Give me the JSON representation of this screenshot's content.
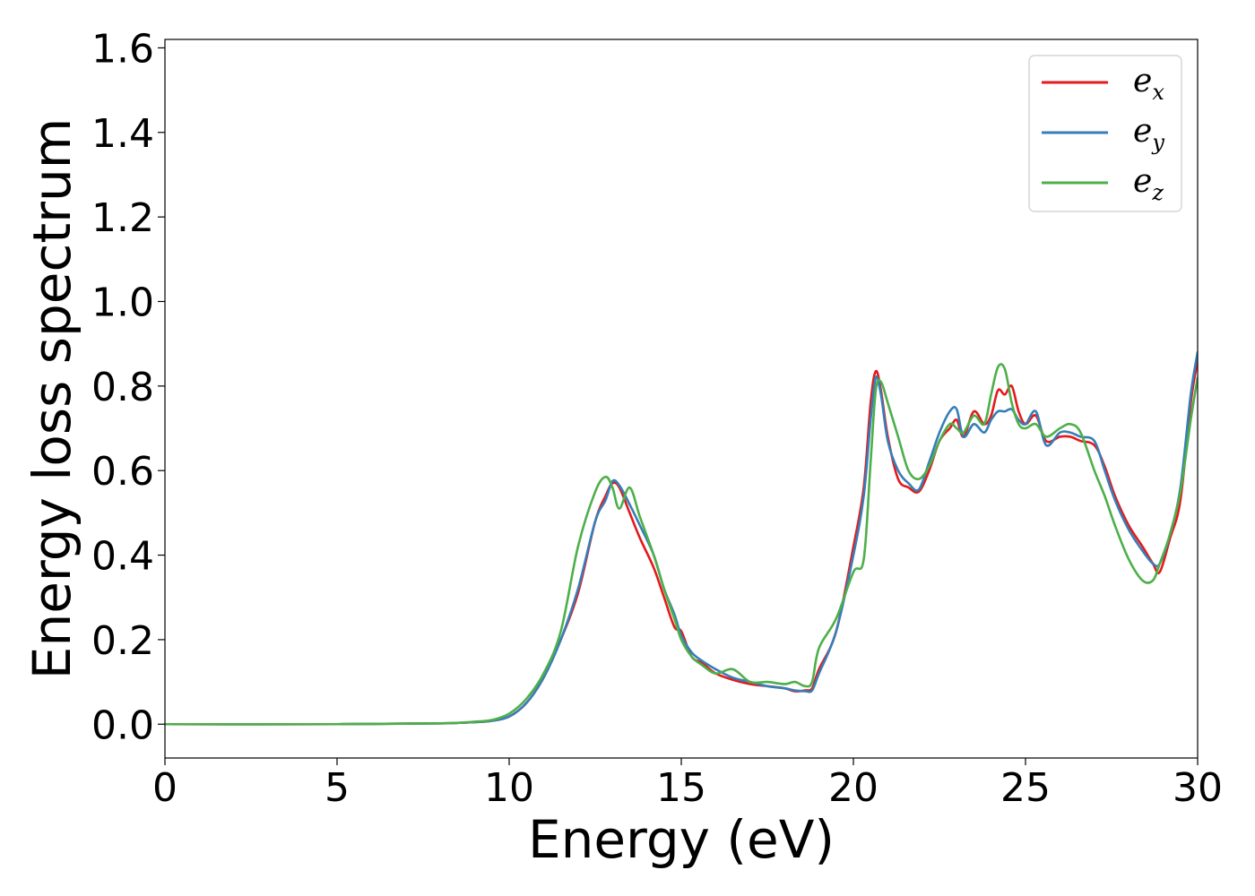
{
  "chart_data": {
    "type": "line",
    "title": "",
    "xlabel": "Energy (eV)",
    "ylabel": "Energy loss spectrum",
    "xlim": [
      0,
      30
    ],
    "ylim": [
      -0.08,
      1.62
    ],
    "xticks": [
      0,
      5,
      10,
      15,
      20,
      25,
      30
    ],
    "xtick_labels": [
      "0",
      "5",
      "10",
      "15",
      "20",
      "25",
      "30"
    ],
    "yticks": [
      0.0,
      0.2,
      0.4,
      0.6,
      0.8,
      1.0,
      1.2,
      1.4,
      1.6
    ],
    "ytick_labels": [
      "0.0",
      "0.2",
      "0.4",
      "0.6",
      "0.8",
      "1.0",
      "1.2",
      "1.4",
      "1.6"
    ],
    "grid": false,
    "legend_position": "top-right",
    "series": [
      {
        "name": "e_x",
        "label_base": "e",
        "label_sub": "x",
        "color": "#e41a1c",
        "x": [
          0,
          5,
          8,
          9,
          9.5,
          10,
          10.5,
          11,
          11.5,
          12,
          12.5,
          12.8,
          13.0,
          13.2,
          13.5,
          13.8,
          14.2,
          14.5,
          14.8,
          15.0,
          15.3,
          15.6,
          16.0,
          16.5,
          17.0,
          17.5,
          18.0,
          18.3,
          18.6,
          18.8,
          19.0,
          19.5,
          20.0,
          20.3,
          20.5,
          20.65,
          20.8,
          21.0,
          21.3,
          21.6,
          21.9,
          22.2,
          22.5,
          22.8,
          23.0,
          23.2,
          23.5,
          23.8,
          24.0,
          24.2,
          24.4,
          24.6,
          24.8,
          25.0,
          25.3,
          25.6,
          26.0,
          26.3,
          26.6,
          27.0,
          27.3,
          27.6,
          28.0,
          28.4,
          28.7,
          28.9,
          29.2,
          29.5,
          29.8,
          30.0
        ],
        "y": [
          0.0,
          0.0,
          0.002,
          0.005,
          0.008,
          0.018,
          0.05,
          0.11,
          0.2,
          0.31,
          0.48,
          0.54,
          0.57,
          0.56,
          0.5,
          0.44,
          0.37,
          0.3,
          0.23,
          0.22,
          0.16,
          0.145,
          0.12,
          0.105,
          0.095,
          0.09,
          0.085,
          0.078,
          0.08,
          0.085,
          0.13,
          0.22,
          0.42,
          0.56,
          0.76,
          0.835,
          0.79,
          0.68,
          0.58,
          0.56,
          0.55,
          0.6,
          0.67,
          0.7,
          0.72,
          0.68,
          0.74,
          0.71,
          0.73,
          0.79,
          0.78,
          0.8,
          0.74,
          0.71,
          0.73,
          0.67,
          0.68,
          0.68,
          0.67,
          0.66,
          0.61,
          0.54,
          0.47,
          0.42,
          0.38,
          0.36,
          0.44,
          0.53,
          0.76,
          0.86
        ]
      },
      {
        "name": "e_y",
        "label_base": "e",
        "label_sub": "y",
        "color": "#377eb8",
        "x": [
          0,
          5,
          8,
          9,
          9.5,
          10,
          10.5,
          11,
          11.5,
          12,
          12.5,
          12.8,
          13.0,
          13.2,
          13.5,
          13.8,
          14.2,
          14.5,
          14.8,
          15.0,
          15.3,
          15.6,
          16.0,
          16.5,
          17.0,
          17.5,
          18.0,
          18.3,
          18.6,
          18.8,
          19.0,
          19.5,
          20.0,
          20.3,
          20.5,
          20.65,
          20.8,
          21.0,
          21.3,
          21.6,
          21.9,
          22.2,
          22.5,
          22.8,
          23.0,
          23.2,
          23.5,
          23.8,
          24.0,
          24.2,
          24.4,
          24.6,
          24.8,
          25.0,
          25.3,
          25.6,
          26.0,
          26.3,
          26.6,
          27.0,
          27.3,
          27.6,
          28.0,
          28.4,
          28.7,
          28.9,
          29.2,
          29.5,
          29.8,
          30.0
        ],
        "y": [
          0.0,
          0.0,
          0.002,
          0.005,
          0.008,
          0.018,
          0.05,
          0.11,
          0.2,
          0.32,
          0.48,
          0.53,
          0.575,
          0.565,
          0.52,
          0.47,
          0.4,
          0.32,
          0.26,
          0.21,
          0.17,
          0.15,
          0.13,
          0.11,
          0.1,
          0.09,
          0.085,
          0.08,
          0.078,
          0.08,
          0.12,
          0.22,
          0.4,
          0.54,
          0.72,
          0.82,
          0.78,
          0.67,
          0.6,
          0.57,
          0.555,
          0.62,
          0.69,
          0.74,
          0.745,
          0.68,
          0.71,
          0.69,
          0.72,
          0.74,
          0.74,
          0.745,
          0.72,
          0.71,
          0.74,
          0.66,
          0.69,
          0.69,
          0.68,
          0.67,
          0.6,
          0.53,
          0.46,
          0.41,
          0.38,
          0.38,
          0.45,
          0.56,
          0.78,
          0.88
        ]
      },
      {
        "name": "e_z",
        "label_base": "e",
        "label_sub": "z",
        "color": "#4daf4a",
        "x": [
          0,
          5,
          8,
          9,
          9.5,
          10,
          10.5,
          11,
          11.5,
          12,
          12.5,
          12.8,
          13.0,
          13.2,
          13.5,
          13.8,
          14.2,
          14.5,
          14.8,
          15.0,
          15.3,
          15.6,
          16.0,
          16.5,
          17.0,
          17.5,
          18.0,
          18.3,
          18.6,
          18.8,
          19.0,
          19.5,
          20.0,
          20.3,
          20.5,
          20.65,
          20.8,
          21.0,
          21.3,
          21.6,
          21.9,
          22.2,
          22.5,
          22.8,
          23.0,
          23.2,
          23.5,
          23.8,
          24.0,
          24.2,
          24.4,
          24.6,
          24.8,
          25.0,
          25.3,
          25.6,
          26.0,
          26.3,
          26.6,
          27.0,
          27.3,
          27.6,
          28.0,
          28.4,
          28.7,
          28.9,
          29.2,
          29.5,
          29.8,
          30.0
        ],
        "y": [
          0.0,
          0.0,
          0.002,
          0.006,
          0.01,
          0.025,
          0.06,
          0.12,
          0.22,
          0.42,
          0.55,
          0.585,
          0.56,
          0.51,
          0.56,
          0.49,
          0.4,
          0.32,
          0.25,
          0.2,
          0.16,
          0.14,
          0.12,
          0.13,
          0.1,
          0.1,
          0.095,
          0.1,
          0.09,
          0.1,
          0.18,
          0.25,
          0.36,
          0.39,
          0.62,
          0.79,
          0.81,
          0.76,
          0.68,
          0.6,
          0.58,
          0.61,
          0.67,
          0.71,
          0.7,
          0.69,
          0.73,
          0.71,
          0.78,
          0.845,
          0.84,
          0.76,
          0.71,
          0.7,
          0.71,
          0.68,
          0.7,
          0.71,
          0.69,
          0.6,
          0.54,
          0.47,
          0.39,
          0.34,
          0.34,
          0.38,
          0.45,
          0.55,
          0.72,
          0.82
        ]
      }
    ]
  }
}
